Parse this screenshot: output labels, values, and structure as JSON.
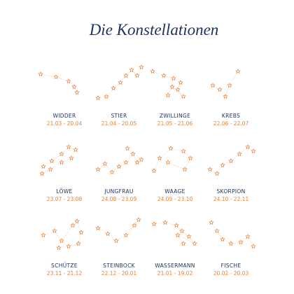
{
  "title": "Die Konstellationen",
  "signs": [
    {
      "name": "WIDDER",
      "dates": "21.03 - 20.04"
    },
    {
      "name": "STIER",
      "dates": "21.04 - 20.05"
    },
    {
      "name": "ZWILLINGE",
      "dates": "21.05 - 21.06"
    },
    {
      "name": "KREBS",
      "dates": "22.06 - 22.07"
    },
    {
      "name": "LÖWE",
      "dates": "23.07 - 23.08"
    },
    {
      "name": "JUNGFRAU",
      "dates": "24.08 - 23.09"
    },
    {
      "name": "WAAGE",
      "dates": "24.09 - 23.10"
    },
    {
      "name": "SKORPION",
      "dates": "24.10 - 22.11"
    },
    {
      "name": "SCHÜTZE",
      "dates": "23.11 - 21.12"
    },
    {
      "name": "STEINBOCK",
      "dates": "22.12 - 20.01"
    },
    {
      "name": "WASSERMANN",
      "dates": "21.01 - 19.02"
    },
    {
      "name": "FISCHE",
      "dates": "20.02 - 20.03"
    }
  ]
}
